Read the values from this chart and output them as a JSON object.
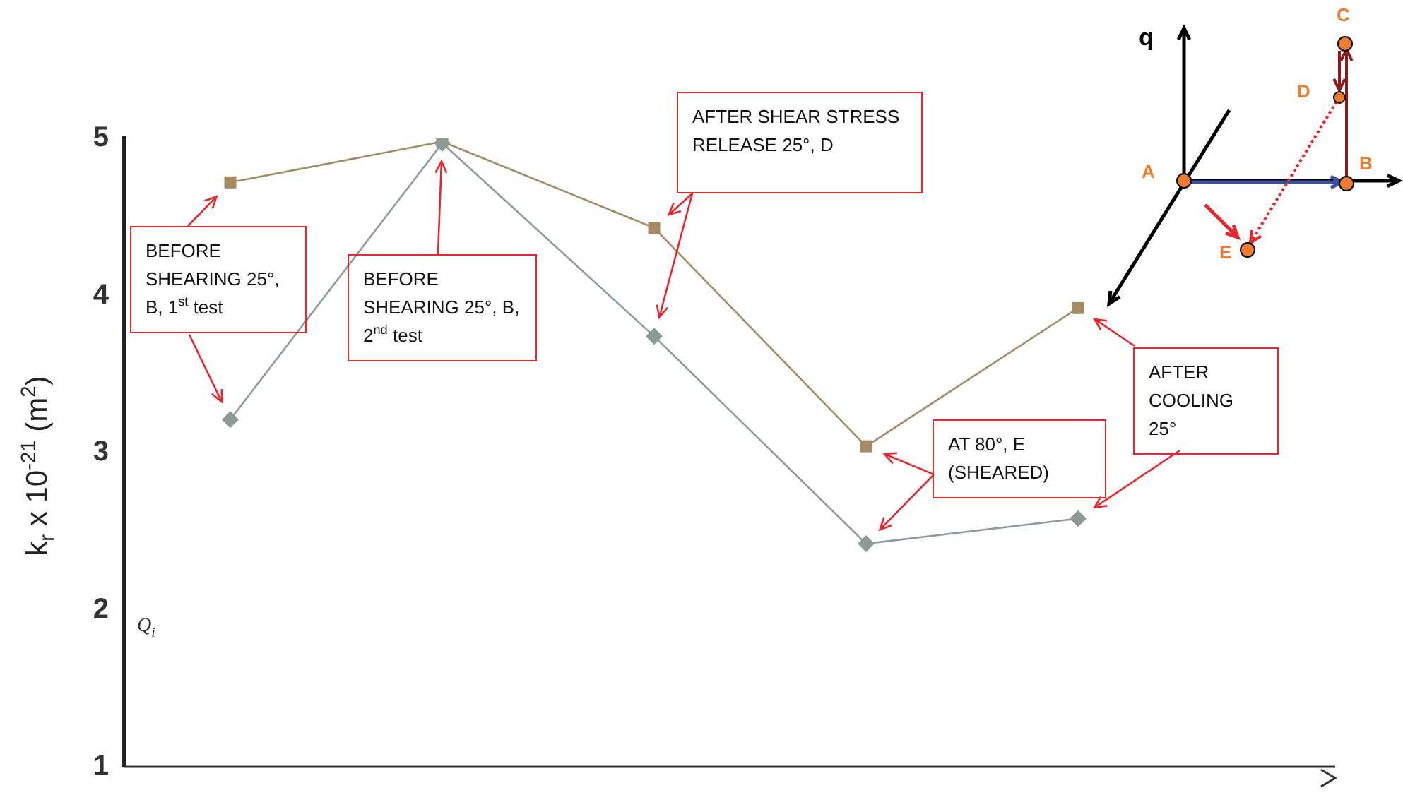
{
  "chart_data": {
    "type": "line",
    "ylabel": "k$_{r}$ x 10$^{-21}$ (m$^{2}$)",
    "categories": [
      null,
      null,
      null,
      null,
      null
    ],
    "series": [
      {
        "color": "#a68a64",
        "marker": "square",
        "values": [
          4.72,
          4.98,
          4.43,
          3.04,
          3.92
        ]
      },
      {
        "color": "#8c9c94",
        "marker": "diamond",
        "values": [
          3.21,
          4.97,
          3.74,
          2.42,
          2.58
        ]
      }
    ],
    "ylim": [
      1,
      5
    ],
    "yticks": [
      1,
      2,
      3,
      4,
      5
    ],
    "grid": false,
    "legend": false,
    "tick_labels": "y",
    "line_style": "solid",
    "annotations": [
      "BEFORE SHEARING 25°, B, 1$^{st}$ test",
      "BEFORE SHEARING 25°, B, 2$^{nd}$ test",
      "AFTER SHEAR STRESS RELEASE 25°, D",
      "AT 80°, E (SHEARED)",
      "AFTER COOLING 25°",
      "Q$_{i}$",
      "q",
      "A",
      "B",
      "C",
      "D",
      "E"
    ]
  }
}
